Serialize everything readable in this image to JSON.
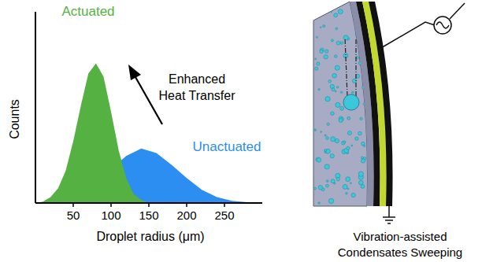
{
  "chart_data": {
    "type": "area",
    "x_label": "Droplet radius (μm)",
    "y_label": "Counts",
    "xlim": [
      0,
      300
    ],
    "xticks": [
      50,
      100,
      150,
      200,
      250
    ],
    "ylim": [
      0,
      1.3
    ],
    "tick_labels": "x",
    "grid": false,
    "annotation": "Enhanced Heat Transfer",
    "series": [
      {
        "name": "Actuated",
        "color": "#55b142",
        "x": [
          0,
          10,
          20,
          30,
          40,
          50,
          60,
          70,
          80,
          90,
          100,
          110,
          120,
          130,
          140,
          150
        ],
        "values": [
          0,
          0.01,
          0.04,
          0.1,
          0.22,
          0.42,
          0.66,
          0.88,
          0.95,
          0.86,
          0.62,
          0.36,
          0.17,
          0.06,
          0.02,
          0
        ]
      },
      {
        "name": "Unactuated",
        "color": "#2b8ef0",
        "x": [
          0,
          20,
          40,
          60,
          80,
          100,
          120,
          140,
          160,
          180,
          200,
          220,
          240,
          260,
          280,
          300
        ],
        "values": [
          0,
          0.01,
          0.03,
          0.07,
          0.14,
          0.23,
          0.32,
          0.37,
          0.34,
          0.26,
          0.17,
          0.09,
          0.04,
          0.015,
          0.005,
          0
        ]
      }
    ]
  },
  "diagram": {
    "caption": "Vibration-assisted Condensates Sweeping"
  }
}
